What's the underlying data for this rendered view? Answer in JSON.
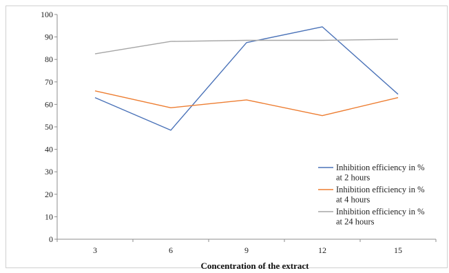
{
  "chart_data": {
    "type": "line",
    "title": "",
    "xlabel": "Concentration of the extract",
    "ylabel": "",
    "categories": [
      "3",
      "6",
      "9",
      "12",
      "15"
    ],
    "ylim": [
      0,
      100
    ],
    "yticks": [
      0,
      10,
      20,
      30,
      40,
      50,
      60,
      70,
      80,
      90,
      100
    ],
    "grid": false,
    "legend_position": "right",
    "series": [
      {
        "name": "Inhibition efficiency in % at 2 hours",
        "legend_lines": [
          "Inhibition efficiency in %",
          "at 2 hours"
        ],
        "color": "#4a72b8",
        "values": [
          63,
          48.5,
          87.5,
          94.5,
          64.5
        ]
      },
      {
        "name": "Inhibition efficiency in % at 4 hours",
        "legend_lines": [
          "Inhibition efficiency in %",
          "at 4 hours"
        ],
        "color": "#ed7d31",
        "values": [
          66,
          58.5,
          62,
          55,
          63
        ]
      },
      {
        "name": "Inhibition efficiency in % at 24 hours",
        "legend_lines": [
          "Inhibition efficiency in %",
          "at 24 hours"
        ],
        "color": "#a5a5a5",
        "values": [
          82.5,
          88,
          88.5,
          88.5,
          89
        ]
      }
    ]
  }
}
